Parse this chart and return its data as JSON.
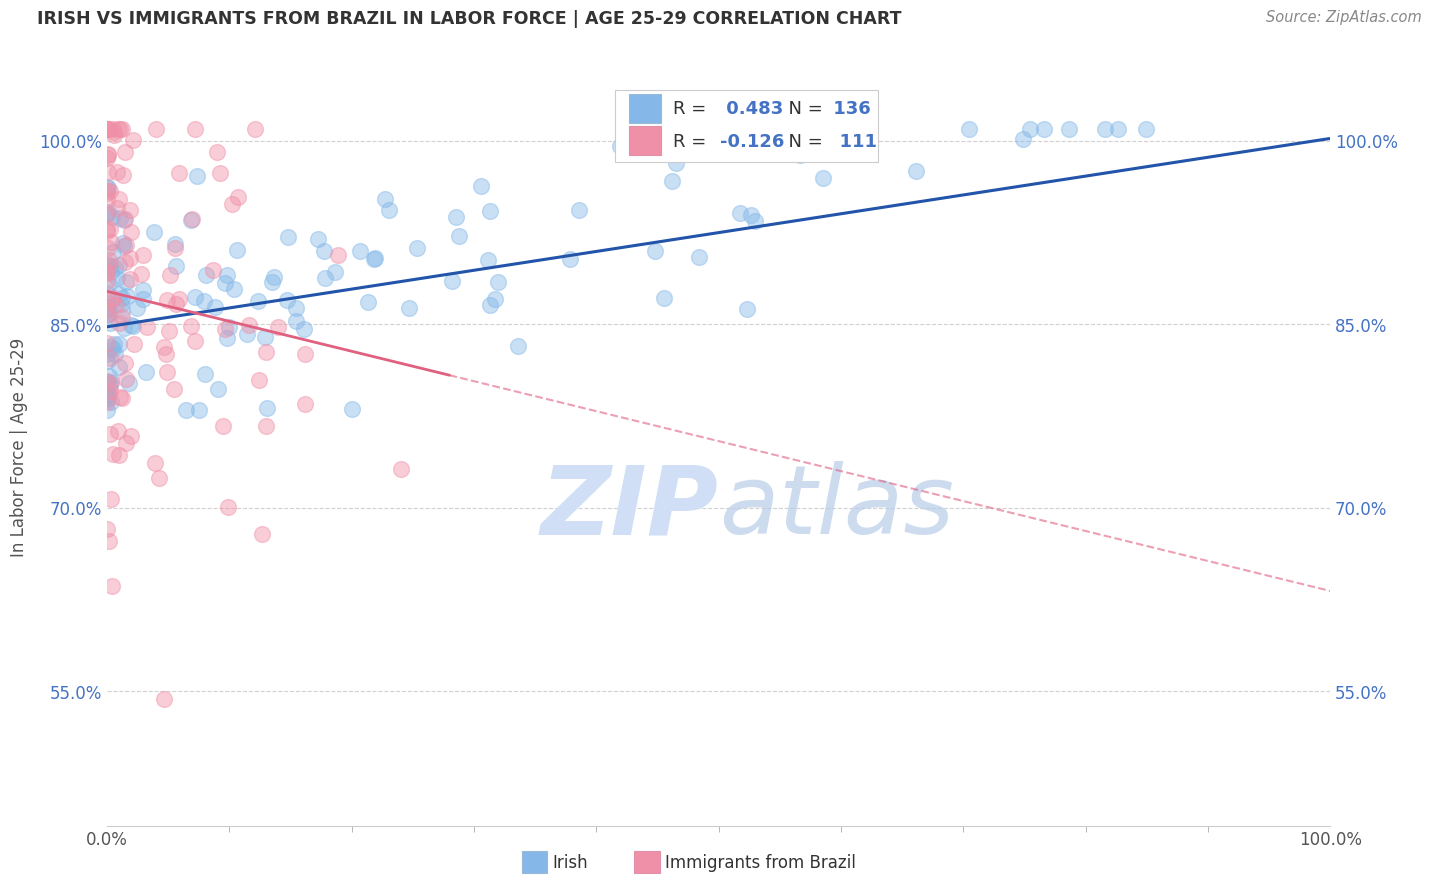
{
  "title": "IRISH VS IMMIGRANTS FROM BRAZIL IN LABOR FORCE | AGE 25-29 CORRELATION CHART",
  "source_text": "Source: ZipAtlas.com",
  "ylabel": "In Labor Force | Age 25-29",
  "xlim": [
    0.0,
    1.0
  ],
  "ylim": [
    0.44,
    1.06
  ],
  "y_ticks": [
    0.55,
    0.7,
    0.85,
    1.0
  ],
  "y_tick_labels": [
    "55.0%",
    "70.0%",
    "85.0%",
    "100.0%"
  ],
  "irish_color": "#85b8e8",
  "brazil_color": "#f090a8",
  "irish_R": 0.483,
  "irish_N": 136,
  "brazil_R": -0.126,
  "brazil_N": 111,
  "trendline_irish_color": "#2255aa",
  "trendline_brazil_color": "#e06080",
  "watermark_color": "#d0dff5",
  "background_color": "#ffffff",
  "grid_color": "#cccccc",
  "legend_color": "#4472c4",
  "legend_text_color": "#4472c4"
}
